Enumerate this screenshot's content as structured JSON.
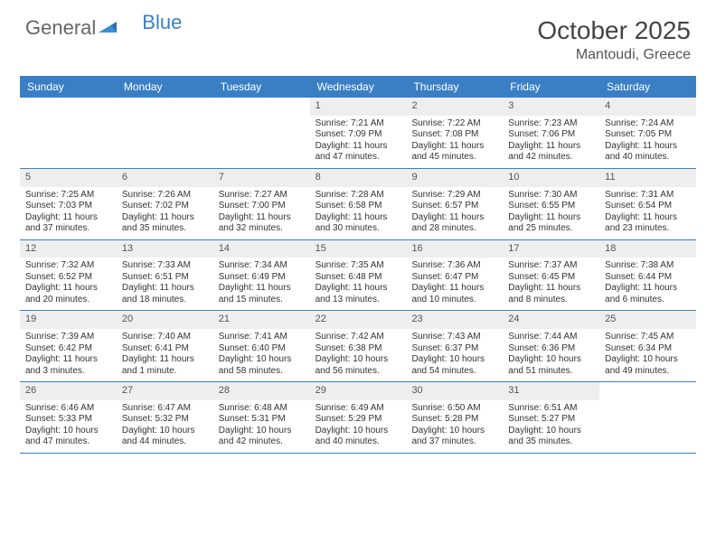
{
  "brand": {
    "part1": "General",
    "part2": "Blue"
  },
  "title": "October 2025",
  "location": "Mantoudi, Greece",
  "colors": {
    "header_bg": "#3a7fc4",
    "daynum_bg": "#eeeeee",
    "text": "#333333",
    "title_text": "#444444"
  },
  "day_headers": [
    "Sunday",
    "Monday",
    "Tuesday",
    "Wednesday",
    "Thursday",
    "Friday",
    "Saturday"
  ],
  "weeks": [
    [
      {
        "n": "",
        "sr": "",
        "ss": "",
        "dl1": "",
        "dl2": ""
      },
      {
        "n": "",
        "sr": "",
        "ss": "",
        "dl1": "",
        "dl2": ""
      },
      {
        "n": "",
        "sr": "",
        "ss": "",
        "dl1": "",
        "dl2": ""
      },
      {
        "n": "1",
        "sr": "Sunrise: 7:21 AM",
        "ss": "Sunset: 7:09 PM",
        "dl1": "Daylight: 11 hours",
        "dl2": "and 47 minutes."
      },
      {
        "n": "2",
        "sr": "Sunrise: 7:22 AM",
        "ss": "Sunset: 7:08 PM",
        "dl1": "Daylight: 11 hours",
        "dl2": "and 45 minutes."
      },
      {
        "n": "3",
        "sr": "Sunrise: 7:23 AM",
        "ss": "Sunset: 7:06 PM",
        "dl1": "Daylight: 11 hours",
        "dl2": "and 42 minutes."
      },
      {
        "n": "4",
        "sr": "Sunrise: 7:24 AM",
        "ss": "Sunset: 7:05 PM",
        "dl1": "Daylight: 11 hours",
        "dl2": "and 40 minutes."
      }
    ],
    [
      {
        "n": "5",
        "sr": "Sunrise: 7:25 AM",
        "ss": "Sunset: 7:03 PM",
        "dl1": "Daylight: 11 hours",
        "dl2": "and 37 minutes."
      },
      {
        "n": "6",
        "sr": "Sunrise: 7:26 AM",
        "ss": "Sunset: 7:02 PM",
        "dl1": "Daylight: 11 hours",
        "dl2": "and 35 minutes."
      },
      {
        "n": "7",
        "sr": "Sunrise: 7:27 AM",
        "ss": "Sunset: 7:00 PM",
        "dl1": "Daylight: 11 hours",
        "dl2": "and 32 minutes."
      },
      {
        "n": "8",
        "sr": "Sunrise: 7:28 AM",
        "ss": "Sunset: 6:58 PM",
        "dl1": "Daylight: 11 hours",
        "dl2": "and 30 minutes."
      },
      {
        "n": "9",
        "sr": "Sunrise: 7:29 AM",
        "ss": "Sunset: 6:57 PM",
        "dl1": "Daylight: 11 hours",
        "dl2": "and 28 minutes."
      },
      {
        "n": "10",
        "sr": "Sunrise: 7:30 AM",
        "ss": "Sunset: 6:55 PM",
        "dl1": "Daylight: 11 hours",
        "dl2": "and 25 minutes."
      },
      {
        "n": "11",
        "sr": "Sunrise: 7:31 AM",
        "ss": "Sunset: 6:54 PM",
        "dl1": "Daylight: 11 hours",
        "dl2": "and 23 minutes."
      }
    ],
    [
      {
        "n": "12",
        "sr": "Sunrise: 7:32 AM",
        "ss": "Sunset: 6:52 PM",
        "dl1": "Daylight: 11 hours",
        "dl2": "and 20 minutes."
      },
      {
        "n": "13",
        "sr": "Sunrise: 7:33 AM",
        "ss": "Sunset: 6:51 PM",
        "dl1": "Daylight: 11 hours",
        "dl2": "and 18 minutes."
      },
      {
        "n": "14",
        "sr": "Sunrise: 7:34 AM",
        "ss": "Sunset: 6:49 PM",
        "dl1": "Daylight: 11 hours",
        "dl2": "and 15 minutes."
      },
      {
        "n": "15",
        "sr": "Sunrise: 7:35 AM",
        "ss": "Sunset: 6:48 PM",
        "dl1": "Daylight: 11 hours",
        "dl2": "and 13 minutes."
      },
      {
        "n": "16",
        "sr": "Sunrise: 7:36 AM",
        "ss": "Sunset: 6:47 PM",
        "dl1": "Daylight: 11 hours",
        "dl2": "and 10 minutes."
      },
      {
        "n": "17",
        "sr": "Sunrise: 7:37 AM",
        "ss": "Sunset: 6:45 PM",
        "dl1": "Daylight: 11 hours",
        "dl2": "and 8 minutes."
      },
      {
        "n": "18",
        "sr": "Sunrise: 7:38 AM",
        "ss": "Sunset: 6:44 PM",
        "dl1": "Daylight: 11 hours",
        "dl2": "and 6 minutes."
      }
    ],
    [
      {
        "n": "19",
        "sr": "Sunrise: 7:39 AM",
        "ss": "Sunset: 6:42 PM",
        "dl1": "Daylight: 11 hours",
        "dl2": "and 3 minutes."
      },
      {
        "n": "20",
        "sr": "Sunrise: 7:40 AM",
        "ss": "Sunset: 6:41 PM",
        "dl1": "Daylight: 11 hours",
        "dl2": "and 1 minute."
      },
      {
        "n": "21",
        "sr": "Sunrise: 7:41 AM",
        "ss": "Sunset: 6:40 PM",
        "dl1": "Daylight: 10 hours",
        "dl2": "and 58 minutes."
      },
      {
        "n": "22",
        "sr": "Sunrise: 7:42 AM",
        "ss": "Sunset: 6:38 PM",
        "dl1": "Daylight: 10 hours",
        "dl2": "and 56 minutes."
      },
      {
        "n": "23",
        "sr": "Sunrise: 7:43 AM",
        "ss": "Sunset: 6:37 PM",
        "dl1": "Daylight: 10 hours",
        "dl2": "and 54 minutes."
      },
      {
        "n": "24",
        "sr": "Sunrise: 7:44 AM",
        "ss": "Sunset: 6:36 PM",
        "dl1": "Daylight: 10 hours",
        "dl2": "and 51 minutes."
      },
      {
        "n": "25",
        "sr": "Sunrise: 7:45 AM",
        "ss": "Sunset: 6:34 PM",
        "dl1": "Daylight: 10 hours",
        "dl2": "and 49 minutes."
      }
    ],
    [
      {
        "n": "26",
        "sr": "Sunrise: 6:46 AM",
        "ss": "Sunset: 5:33 PM",
        "dl1": "Daylight: 10 hours",
        "dl2": "and 47 minutes."
      },
      {
        "n": "27",
        "sr": "Sunrise: 6:47 AM",
        "ss": "Sunset: 5:32 PM",
        "dl1": "Daylight: 10 hours",
        "dl2": "and 44 minutes."
      },
      {
        "n": "28",
        "sr": "Sunrise: 6:48 AM",
        "ss": "Sunset: 5:31 PM",
        "dl1": "Daylight: 10 hours",
        "dl2": "and 42 minutes."
      },
      {
        "n": "29",
        "sr": "Sunrise: 6:49 AM",
        "ss": "Sunset: 5:29 PM",
        "dl1": "Daylight: 10 hours",
        "dl2": "and 40 minutes."
      },
      {
        "n": "30",
        "sr": "Sunrise: 6:50 AM",
        "ss": "Sunset: 5:28 PM",
        "dl1": "Daylight: 10 hours",
        "dl2": "and 37 minutes."
      },
      {
        "n": "31",
        "sr": "Sunrise: 6:51 AM",
        "ss": "Sunset: 5:27 PM",
        "dl1": "Daylight: 10 hours",
        "dl2": "and 35 minutes."
      },
      {
        "n": "",
        "sr": "",
        "ss": "",
        "dl1": "",
        "dl2": ""
      }
    ]
  ]
}
